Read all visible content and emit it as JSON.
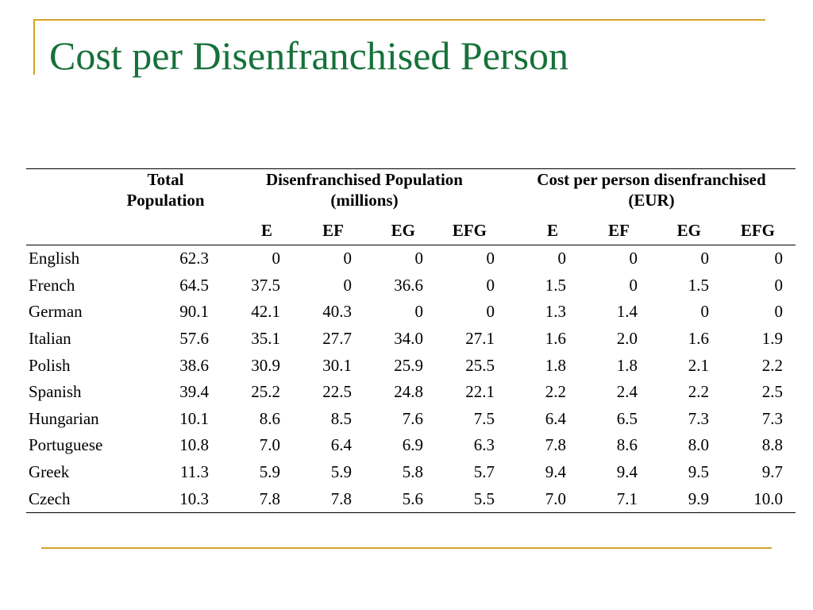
{
  "slide": {
    "title": "Cost per Disenfranchised Person"
  },
  "table": {
    "header": {
      "total_population": [
        "Total",
        "Population"
      ],
      "disenfranchised": [
        "Disenfranchised Population",
        "(millions)"
      ],
      "cost": [
        "Cost per person disenfranchised",
        "(EUR)"
      ]
    },
    "subheaders": [
      "E",
      "EF",
      "EG",
      "EFG",
      "E",
      "EF",
      "EG",
      "EFG"
    ],
    "rows": [
      {
        "language": "English",
        "total": "62.3",
        "pop": [
          "0",
          "0",
          "0",
          "0"
        ],
        "cost": [
          "0",
          "0",
          "0",
          "0"
        ]
      },
      {
        "language": "French",
        "total": "64.5",
        "pop": [
          "37.5",
          "0",
          "36.6",
          "0"
        ],
        "cost": [
          "1.5",
          "0",
          "1.5",
          "0"
        ]
      },
      {
        "language": "German",
        "total": "90.1",
        "pop": [
          "42.1",
          "40.3",
          "0",
          "0"
        ],
        "cost": [
          "1.3",
          "1.4",
          "0",
          "0"
        ]
      },
      {
        "language": "Italian",
        "total": "57.6",
        "pop": [
          "35.1",
          "27.7",
          "34.0",
          "27.1"
        ],
        "cost": [
          "1.6",
          "2.0",
          "1.6",
          "1.9"
        ]
      },
      {
        "language": "Polish",
        "total": "38.6",
        "pop": [
          "30.9",
          "30.1",
          "25.9",
          "25.5"
        ],
        "cost": [
          "1.8",
          "1.8",
          "2.1",
          "2.2"
        ]
      },
      {
        "language": "Spanish",
        "total": "39.4",
        "pop": [
          "25.2",
          "22.5",
          "24.8",
          "22.1"
        ],
        "cost": [
          "2.2",
          "2.4",
          "2.2",
          "2.5"
        ]
      },
      {
        "language": "Hungarian",
        "total": "10.1",
        "pop": [
          "8.6",
          "8.5",
          "7.6",
          "7.5"
        ],
        "cost": [
          "6.4",
          "6.5",
          "7.3",
          "7.3"
        ]
      },
      {
        "language": "Portuguese",
        "total": "10.8",
        "pop": [
          "7.0",
          "6.4",
          "6.9",
          "6.3"
        ],
        "cost": [
          "7.8",
          "8.6",
          "8.0",
          "8.8"
        ]
      },
      {
        "language": "Greek",
        "total": "11.3",
        "pop": [
          "5.9",
          "5.9",
          "5.8",
          "5.7"
        ],
        "cost": [
          "9.4",
          "9.4",
          "9.5",
          "9.7"
        ]
      },
      {
        "language": "Czech",
        "total": "10.3",
        "pop": [
          "7.8",
          "7.8",
          "5.6",
          "5.5"
        ],
        "cost": [
          "7.0",
          "7.1",
          "9.9",
          "10.0"
        ]
      }
    ]
  },
  "colors": {
    "title": "#16713a",
    "accent_lines": "#d2a42a"
  }
}
